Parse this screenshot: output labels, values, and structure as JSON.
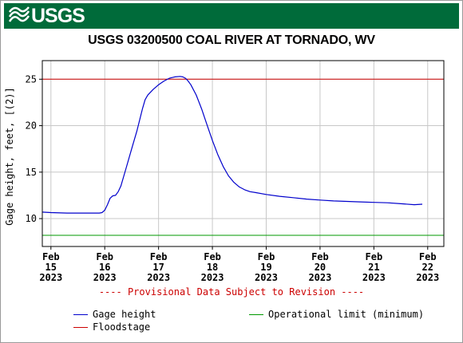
{
  "header": {
    "logo_text": "USGS",
    "banner_color": "#006b3a"
  },
  "chart_data": {
    "type": "line",
    "title": "USGS 03200500 COAL RIVER AT TORNADO, WV",
    "ylabel": "Gage height, feet, [(2)]",
    "xlabel": "",
    "ylim": [
      7.0,
      27.0
    ],
    "yticks": [
      10,
      15,
      20,
      25
    ],
    "xlim": [
      14.84,
      22.3
    ],
    "xticks": [
      {
        "x": 15,
        "lines": [
          "Feb",
          "15",
          "2023"
        ]
      },
      {
        "x": 16,
        "lines": [
          "Feb",
          "16",
          "2023"
        ]
      },
      {
        "x": 17,
        "lines": [
          "Feb",
          "17",
          "2023"
        ]
      },
      {
        "x": 18,
        "lines": [
          "Feb",
          "18",
          "2023"
        ]
      },
      {
        "x": 19,
        "lines": [
          "Feb",
          "19",
          "2023"
        ]
      },
      {
        "x": 20,
        "lines": [
          "Feb",
          "20",
          "2023"
        ]
      },
      {
        "x": 21,
        "lines": [
          "Feb",
          "21",
          "2023"
        ]
      },
      {
        "x": 22,
        "lines": [
          "Feb",
          "22",
          "2023"
        ]
      }
    ],
    "grid": true,
    "series": [
      {
        "name": "Gage height",
        "color": "#0000cc",
        "x": [
          14.84,
          15.0,
          15.3,
          15.6,
          15.9,
          15.95,
          16.0,
          16.05,
          16.1,
          16.15,
          16.2,
          16.25,
          16.3,
          16.4,
          16.5,
          16.6,
          16.7,
          16.75,
          16.8,
          16.9,
          17.0,
          17.1,
          17.2,
          17.3,
          17.4,
          17.45,
          17.5,
          17.55,
          17.6,
          17.7,
          17.8,
          17.9,
          18.0,
          18.1,
          18.2,
          18.3,
          18.4,
          18.5,
          18.6,
          18.7,
          18.8,
          19.0,
          19.25,
          19.5,
          19.75,
          20.0,
          20.25,
          20.5,
          20.75,
          21.0,
          21.25,
          21.5,
          21.75,
          21.9
        ],
        "y": [
          10.7,
          10.65,
          10.6,
          10.6,
          10.6,
          10.65,
          10.9,
          11.5,
          12.2,
          12.45,
          12.5,
          12.9,
          13.5,
          15.5,
          17.5,
          19.5,
          21.8,
          22.8,
          23.3,
          23.9,
          24.4,
          24.8,
          25.1,
          25.25,
          25.3,
          25.25,
          25.1,
          24.8,
          24.4,
          23.3,
          21.8,
          20.1,
          18.4,
          16.9,
          15.6,
          14.6,
          13.9,
          13.4,
          13.1,
          12.9,
          12.8,
          12.6,
          12.4,
          12.25,
          12.1,
          12.0,
          11.9,
          11.85,
          11.8,
          11.75,
          11.7,
          11.6,
          11.5,
          11.55
        ]
      },
      {
        "name": "Floodstage",
        "color": "#cc0000",
        "value": 25.0
      },
      {
        "name": "Operational limit (minimum)",
        "color": "#009900",
        "value": 8.2
      }
    ],
    "annotation": "---- Provisional Data Subject to Revision ----"
  }
}
